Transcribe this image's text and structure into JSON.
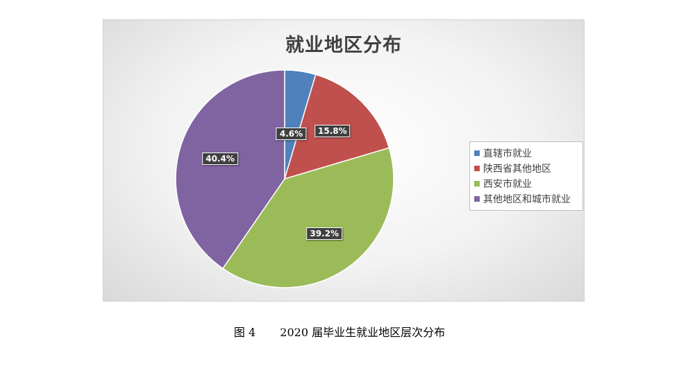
{
  "chart_data": {
    "type": "pie",
    "title": "就业地区分布",
    "categories": [
      "直辖市就业",
      "陕西省其他地区",
      "西安市就业",
      "其他地区和城市就业"
    ],
    "values": [
      4.6,
      15.8,
      39.2,
      40.4
    ],
    "labels": [
      "4.6%",
      "15.8%",
      "39.2%",
      "40.4%"
    ],
    "colors": [
      "#4f81bd",
      "#c0504d",
      "#9bbb59",
      "#8064a2"
    ],
    "legend_position": "right"
  },
  "caption": {
    "figure_number": "图 4",
    "text": "2020 届毕业生就业地区层次分布"
  }
}
